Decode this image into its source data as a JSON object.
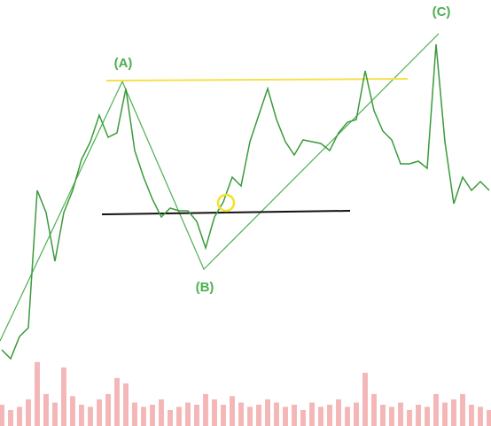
{
  "chart_data": {
    "type": "line",
    "annotations": [
      "(A)",
      "(B)",
      "(C)"
    ],
    "x": [
      1,
      2,
      3,
      4,
      5,
      6,
      7,
      8,
      9,
      10,
      11,
      12,
      13,
      14,
      15,
      16,
      17,
      18,
      19,
      20,
      21,
      22,
      23,
      24,
      25,
      26,
      27,
      28,
      29,
      30,
      31,
      32,
      33,
      34,
      35,
      36,
      37,
      38,
      39,
      40,
      41,
      42,
      43,
      44,
      45,
      46,
      47,
      48,
      49,
      50,
      51,
      52,
      53,
      54,
      55,
      56
    ],
    "xlim": [
      1,
      56
    ],
    "ylim": [
      0,
      481
    ],
    "y2lim": [
      0,
      400
    ],
    "series": [
      {
        "color": "#3a9a3a",
        "values": [
          86,
          76,
          101,
          111,
          266,
          241,
          186,
          241,
          266,
          301,
          321,
          351,
          326,
          331,
          381,
          311,
          281,
          256,
          236,
          246,
          243,
          243,
          231,
          201,
          236,
          253,
          281,
          271,
          321,
          351,
          381,
          346,
          321,
          306,
          323,
          321,
          319,
          311,
          331,
          343,
          346,
          401,
          356,
          333,
          323,
          296,
          296,
          299,
          291,
          431,
          321,
          251,
          281,
          266,
          276,
          266
        ]
      },
      {
        "color": "#f4b6b6",
        "axis": "y2",
        "values": [
          20,
          15,
          18,
          25,
          60,
          30,
          22,
          55,
          28,
          20,
          18,
          25,
          30,
          45,
          40,
          22,
          18,
          20,
          25,
          15,
          18,
          22,
          20,
          30,
          25,
          20,
          28,
          22,
          18,
          20,
          25,
          22,
          18,
          20,
          15,
          22,
          18,
          20,
          25,
          18,
          22,
          50,
          30,
          20,
          18,
          22,
          15,
          20,
          18,
          30,
          22,
          25,
          30,
          20,
          18,
          15
        ]
      }
    ]
  }
}
